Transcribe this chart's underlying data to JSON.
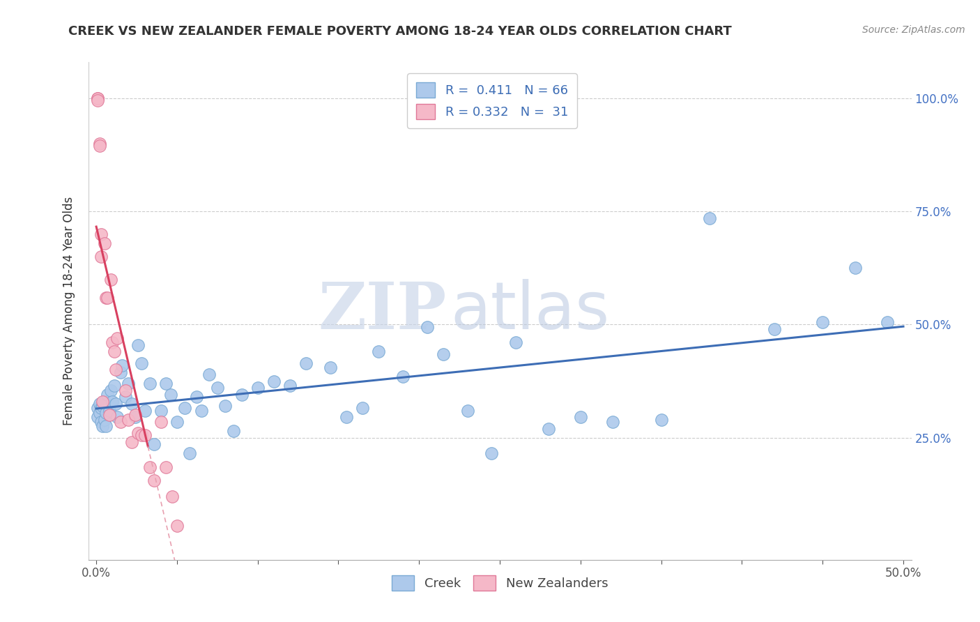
{
  "title": "CREEK VS NEW ZEALANDER FEMALE POVERTY AMONG 18-24 YEAR OLDS CORRELATION CHART",
  "source": "Source: ZipAtlas.com",
  "xlabel": "",
  "ylabel": "Female Poverty Among 18-24 Year Olds",
  "xlim": [
    -0.005,
    0.505
  ],
  "ylim": [
    -0.02,
    1.08
  ],
  "creek_color": "#adc9eb",
  "creek_edge": "#7aaad4",
  "nz_color": "#f5b8c8",
  "nz_edge": "#e07898",
  "trendline_creek_color": "#3d6db5",
  "trendline_nz_color": "#d84060",
  "trendline_nz_dashed_color": "#e8a0b0",
  "creek_R": "0.411",
  "creek_N": "66",
  "nz_R": "0.332",
  "nz_N": "31",
  "legend_labels": [
    "Creek",
    "New Zealanders"
  ],
  "watermark_zip": "ZIP",
  "watermark_atlas": "atlas",
  "creek_x": [
    0.001,
    0.001,
    0.002,
    0.002,
    0.003,
    0.003,
    0.004,
    0.004,
    0.005,
    0.005,
    0.006,
    0.006,
    0.007,
    0.008,
    0.009,
    0.01,
    0.011,
    0.012,
    0.013,
    0.015,
    0.016,
    0.018,
    0.02,
    0.022,
    0.024,
    0.026,
    0.028,
    0.03,
    0.033,
    0.036,
    0.04,
    0.043,
    0.046,
    0.05,
    0.055,
    0.058,
    0.062,
    0.065,
    0.07,
    0.075,
    0.08,
    0.085,
    0.09,
    0.1,
    0.11,
    0.12,
    0.13,
    0.145,
    0.155,
    0.165,
    0.175,
    0.19,
    0.205,
    0.215,
    0.23,
    0.245,
    0.26,
    0.28,
    0.3,
    0.32,
    0.35,
    0.38,
    0.42,
    0.45,
    0.47,
    0.49
  ],
  "creek_y": [
    0.315,
    0.295,
    0.325,
    0.305,
    0.315,
    0.285,
    0.32,
    0.275,
    0.33,
    0.29,
    0.305,
    0.275,
    0.345,
    0.31,
    0.355,
    0.33,
    0.365,
    0.325,
    0.295,
    0.395,
    0.41,
    0.34,
    0.37,
    0.325,
    0.295,
    0.455,
    0.415,
    0.31,
    0.37,
    0.235,
    0.31,
    0.37,
    0.345,
    0.285,
    0.315,
    0.215,
    0.34,
    0.31,
    0.39,
    0.36,
    0.32,
    0.265,
    0.345,
    0.36,
    0.375,
    0.365,
    0.415,
    0.405,
    0.295,
    0.315,
    0.44,
    0.385,
    0.495,
    0.435,
    0.31,
    0.215,
    0.46,
    0.27,
    0.295,
    0.285,
    0.29,
    0.735,
    0.49,
    0.505,
    0.625,
    0.505
  ],
  "nz_x": [
    0.001,
    0.001,
    0.001,
    0.002,
    0.002,
    0.003,
    0.003,
    0.004,
    0.005,
    0.006,
    0.007,
    0.008,
    0.009,
    0.01,
    0.011,
    0.012,
    0.013,
    0.015,
    0.018,
    0.02,
    0.022,
    0.024,
    0.026,
    0.028,
    0.03,
    0.033,
    0.036,
    0.04,
    0.043,
    0.047,
    0.05
  ],
  "nz_y": [
    1.0,
    1.0,
    0.995,
    0.9,
    0.895,
    0.7,
    0.65,
    0.33,
    0.68,
    0.56,
    0.56,
    0.3,
    0.6,
    0.46,
    0.44,
    0.4,
    0.47,
    0.285,
    0.355,
    0.29,
    0.24,
    0.3,
    0.26,
    0.255,
    0.255,
    0.185,
    0.155,
    0.285,
    0.185,
    0.12,
    0.055
  ]
}
